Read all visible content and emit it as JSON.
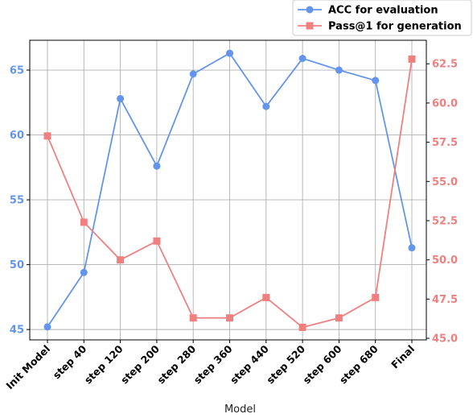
{
  "chart_data": {
    "type": "line",
    "categories": [
      "Init Model",
      "step 40",
      "step 120",
      "step 200",
      "step 280",
      "step 360",
      "step 440",
      "step 520",
      "step 600",
      "step 680",
      "Final"
    ],
    "series": [
      {
        "name": "ACC for evaluation",
        "axis": "left",
        "color": "#6495ED",
        "marker": "circle",
        "values": [
          45.2,
          49.4,
          62.8,
          57.6,
          64.7,
          66.3,
          62.2,
          65.9,
          65.0,
          64.2,
          51.3
        ]
      },
      {
        "name": "Pass@1 for generation",
        "axis": "right",
        "color": "#F08080",
        "marker": "square",
        "values": [
          57.9,
          52.4,
          50.0,
          51.2,
          46.3,
          46.3,
          47.6,
          45.7,
          46.3,
          47.6,
          62.8
        ]
      }
    ],
    "xlabel": "Model",
    "ylabel_left": "",
    "ylabel_right": "",
    "y_left": {
      "lim": [
        44.2,
        67.3
      ],
      "ticks": [
        45,
        50,
        55,
        60,
        65
      ],
      "tick_labels": [
        "45",
        "50",
        "55",
        "60",
        "65"
      ]
    },
    "y_right": {
      "lim": [
        44.9,
        64.0
      ],
      "ticks": [
        45.0,
        47.5,
        50.0,
        52.5,
        55.0,
        57.5,
        60.0,
        62.5
      ],
      "tick_labels": [
        "45.0",
        "47.5",
        "50.0",
        "52.5",
        "55.0",
        "57.5",
        "60.0",
        "62.5"
      ]
    },
    "grid": true,
    "legend": "top-right"
  }
}
